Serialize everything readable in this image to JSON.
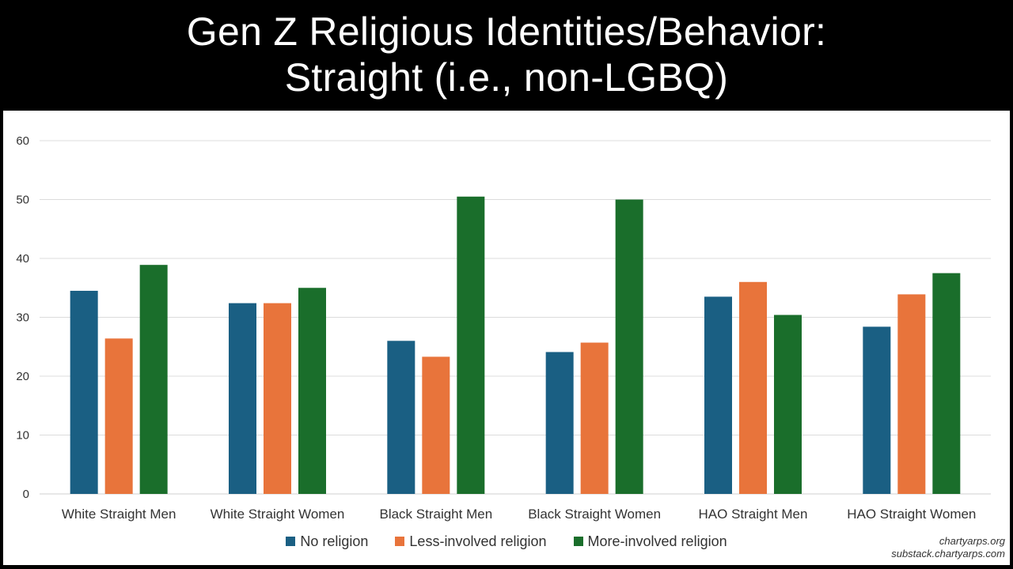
{
  "title": {
    "line1": "Gen Z Religious Identities/Behavior:",
    "line2": "Straight (i.e., non-LGBQ)"
  },
  "credits": {
    "line1": "chartyarps.org",
    "line2": "substack.chartyarps.com"
  },
  "chart_data": {
    "type": "bar",
    "title": "Gen Z Religious Identities/Behavior: Straight (i.e., non-LGBQ)",
    "xlabel": "",
    "ylabel": "",
    "ylim": [
      0,
      60
    ],
    "yticks": [
      0,
      10,
      20,
      30,
      40,
      50,
      60
    ],
    "grid": true,
    "legend_position": "bottom",
    "categories": [
      "White Straight Men",
      "White Straight Women",
      "Black Straight Men",
      "Black Straight Women",
      "HAO Straight Men",
      "HAO Straight Women"
    ],
    "series": [
      {
        "name": "No religion",
        "color": "#1a5f83",
        "values": [
          34.5,
          32.4,
          26.0,
          24.1,
          33.5,
          28.4
        ]
      },
      {
        "name": "Less-involved religion",
        "color": "#e8743b",
        "values": [
          26.4,
          32.4,
          23.3,
          25.7,
          36.0,
          33.9
        ]
      },
      {
        "name": "More-involved religion",
        "color": "#1a6e2b",
        "values": [
          38.9,
          35.0,
          50.5,
          50.0,
          30.4,
          37.5
        ]
      }
    ]
  }
}
